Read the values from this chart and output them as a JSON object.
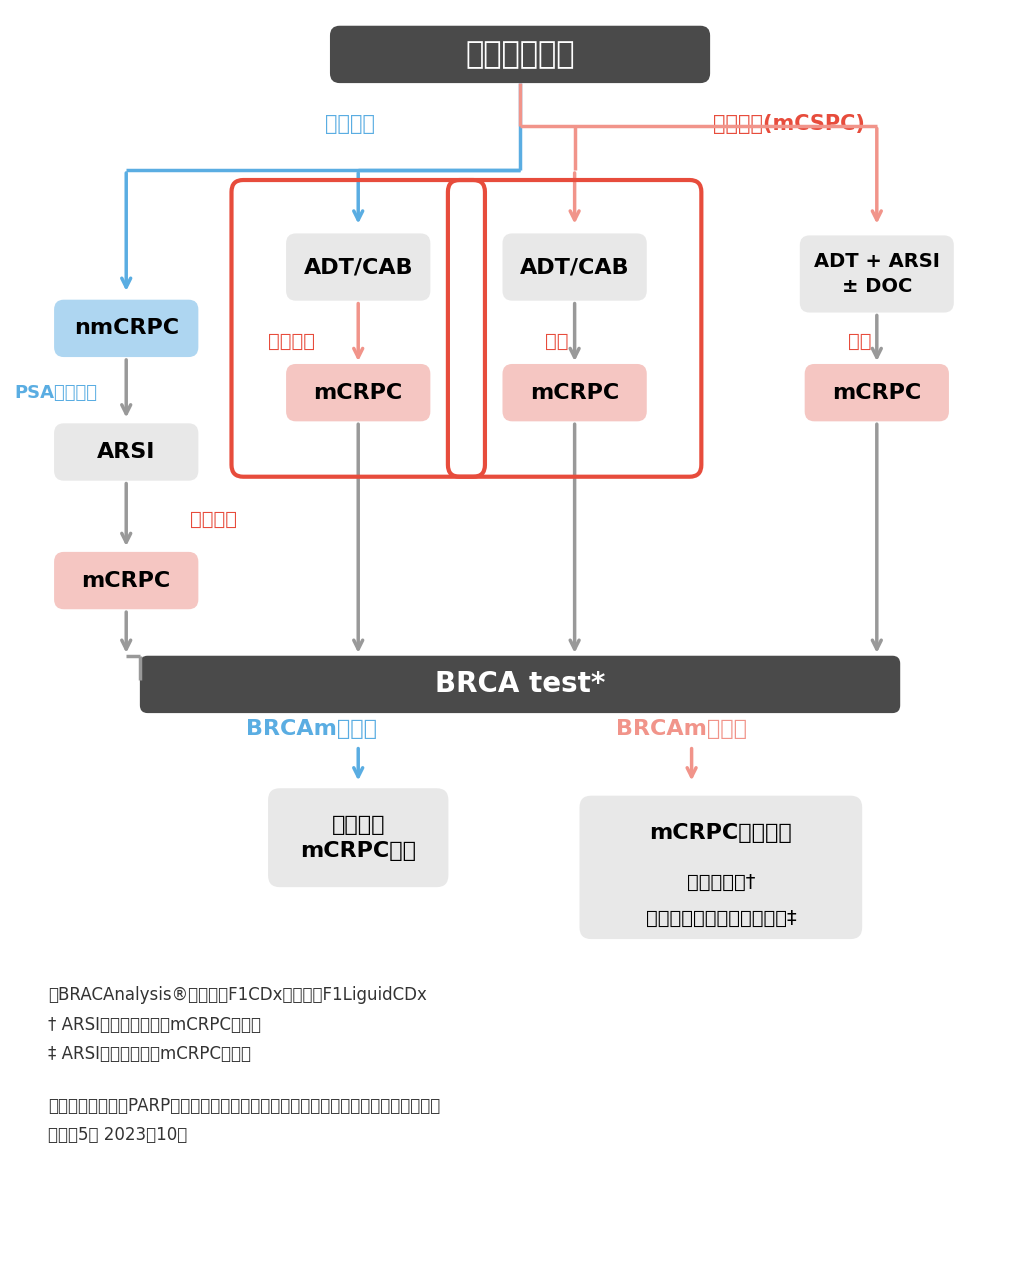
{
  "bg_color": "#ffffff",
  "colors": {
    "blue": "#5aade2",
    "pink": "#f1948a",
    "red_border": "#e74c3c",
    "gray_arrow": "#999999",
    "dark_box": "#4a4a4a",
    "light_gray_box": "#e8e8e8",
    "light_blue_box": "#aed6f1",
    "light_pink_box": "#f5c6c2"
  },
  "footnote_lines": [
    "＋BRACAnalysis®あるいはF1CDxあるいはF1LiguidCDx",
    "† ARSI治療歴を有するmCRPCが対象",
    "‡ ARSI治療歴のないmCRPCが対象",
    "",
    "前立腺癌におけるPARP阻害薬のコンパニオン診断を実施する際の考え方（見解書）",
    "改訂第5版 2023年10月"
  ]
}
